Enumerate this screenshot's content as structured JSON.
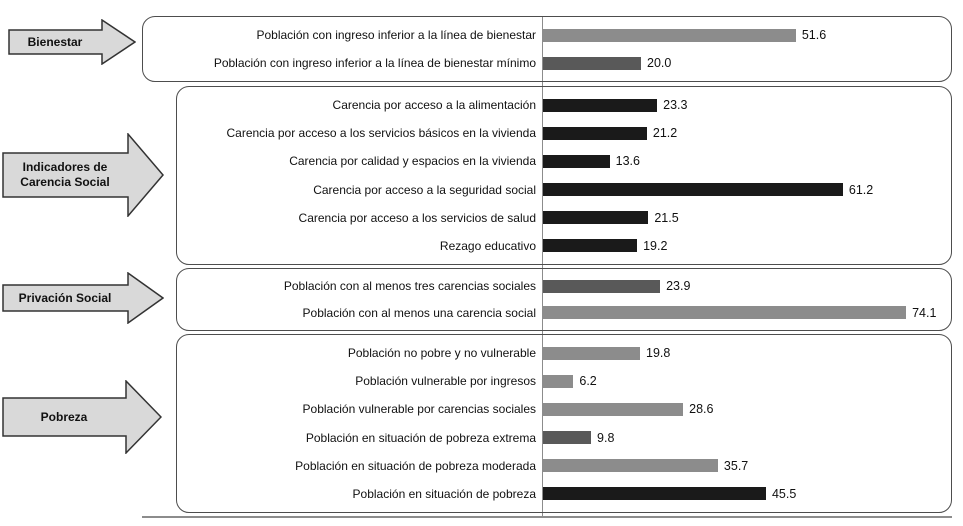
{
  "chart_data": {
    "type": "bar",
    "orientation": "horizontal",
    "title": "",
    "xlabel": "",
    "ylabel": "",
    "xlim": [
      0,
      80
    ],
    "grid": false,
    "legend": false,
    "value_labels_shown": true,
    "groups": [
      {
        "id": "bienestar",
        "label": "Bienestar",
        "bars": [
          {
            "category": "Población con ingreso inferior a la línea de bienestar",
            "value": 51.6,
            "value_label": "51.6",
            "color": "#8c8c8c"
          },
          {
            "category": "Población con ingreso inferior a la línea de bienestar mínimo",
            "value": 20.0,
            "value_label": "20.0",
            "color": "#595959"
          }
        ]
      },
      {
        "id": "indicadores-carencia-social",
        "label": "Indicadores de Carencia Social",
        "bars": [
          {
            "category": "Carencia por acceso a la alimentación",
            "value": 23.3,
            "value_label": "23.3",
            "color": "#1a1a1a"
          },
          {
            "category": "Carencia por acceso a los servicios básicos en la vivienda",
            "value": 21.2,
            "value_label": "21.2",
            "color": "#1a1a1a"
          },
          {
            "category": "Carencia por calidad y espacios en la vivienda",
            "value": 13.6,
            "value_label": "13.6",
            "color": "#1a1a1a"
          },
          {
            "category": "Carencia por acceso a la seguridad social",
            "value": 61.2,
            "value_label": "61.2",
            "color": "#1a1a1a"
          },
          {
            "category": "Carencia por acceso a los servicios de salud",
            "value": 21.5,
            "value_label": "21.5",
            "color": "#1a1a1a"
          },
          {
            "category": "Rezago educativo",
            "value": 19.2,
            "value_label": "19.2",
            "color": "#1a1a1a"
          }
        ]
      },
      {
        "id": "privacion-social",
        "label": "Privación Social",
        "bars": [
          {
            "category": "Población con al menos tres carencias sociales",
            "value": 23.9,
            "value_label": "23.9",
            "color": "#595959"
          },
          {
            "category": "Población con al menos una carencia social",
            "value": 74.1,
            "value_label": "74.1",
            "color": "#8c8c8c"
          }
        ]
      },
      {
        "id": "pobreza",
        "label": "Pobreza",
        "bars": [
          {
            "category": "Población no pobre y no vulnerable",
            "value": 19.8,
            "value_label": "19.8",
            "color": "#8c8c8c"
          },
          {
            "category": "Población vulnerable por ingresos",
            "value": 6.2,
            "value_label": "6.2",
            "color": "#8c8c8c"
          },
          {
            "category": "Población vulnerable por carencias sociales",
            "value": 28.6,
            "value_label": "28.6",
            "color": "#8c8c8c"
          },
          {
            "category": "Población en situación de pobreza extrema",
            "value": 9.8,
            "value_label": "9.8",
            "color": "#595959"
          },
          {
            "category": "Población en situación de pobreza moderada",
            "value": 35.7,
            "value_label": "35.7",
            "color": "#8c8c8c"
          },
          {
            "category": "Población en situación de pobreza",
            "value": 45.5,
            "value_label": "45.5",
            "color": "#1a1a1a"
          }
        ]
      }
    ]
  }
}
